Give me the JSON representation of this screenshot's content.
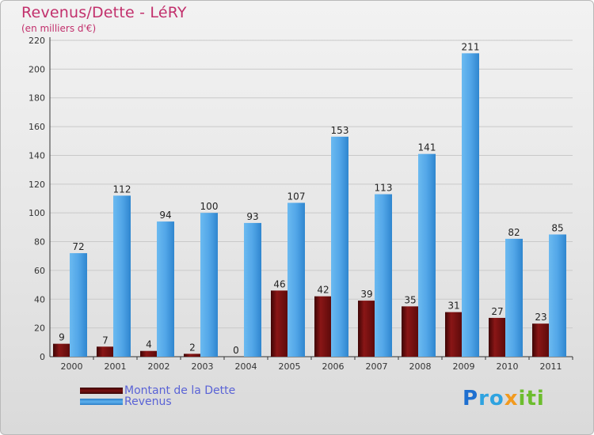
{
  "header": {
    "title": "Revenus/Dette - LéRY",
    "subtitle": "(en milliers d'€)"
  },
  "legend": {
    "items": [
      {
        "label": "Montant de la Dette",
        "color": "#7a1010"
      },
      {
        "label": "Revenus",
        "color": "#4aa0e6"
      }
    ]
  },
  "logo": {
    "text": "Proxiti"
  },
  "chart_data": {
    "type": "bar",
    "categories": [
      "2000",
      "2001",
      "2002",
      "2003",
      "2004",
      "2005",
      "2006",
      "2007",
      "2008",
      "2009",
      "2010",
      "2011"
    ],
    "series": [
      {
        "name": "Montant de la Dette",
        "values": [
          9,
          7,
          4,
          2,
          0,
          46,
          42,
          39,
          35,
          31,
          27,
          23
        ],
        "color": "#7a1010"
      },
      {
        "name": "Revenus",
        "values": [
          72,
          112,
          94,
          100,
          93,
          107,
          153,
          113,
          141,
          211,
          82,
          85
        ],
        "color": "#4aa0e6"
      }
    ],
    "title": "Revenus/Dette - LéRY",
    "subtitle": "(en milliers d'€)",
    "xlabel": "",
    "ylabel": "",
    "ylim": [
      0,
      220
    ],
    "yticks": [
      0,
      20,
      40,
      60,
      80,
      100,
      120,
      140,
      160,
      180,
      200,
      220
    ],
    "grid": true,
    "legend_position": "bottom-left"
  }
}
